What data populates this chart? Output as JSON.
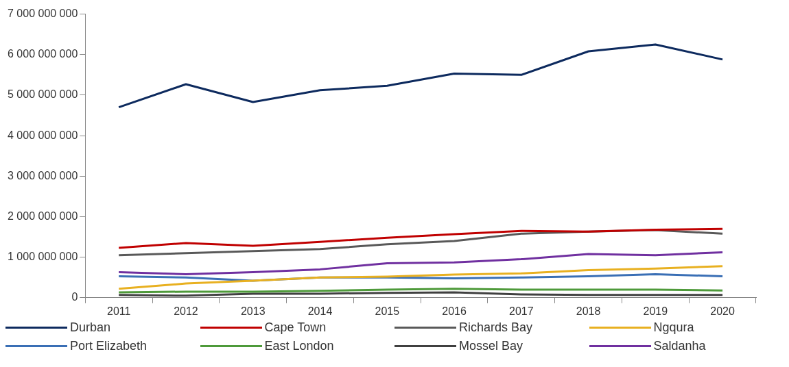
{
  "chart_data": {
    "type": "line",
    "categories": [
      "2011",
      "2012",
      "2013",
      "2014",
      "2015",
      "2016",
      "2017",
      "2018",
      "2019",
      "2020"
    ],
    "series": [
      {
        "name": "Durban",
        "color": "#0d2a5e",
        "values": [
          4700000000,
          5270000000,
          4830000000,
          5120000000,
          5230000000,
          5530000000,
          5500000000,
          6080000000,
          6250000000,
          5880000000
        ]
      },
      {
        "name": "Cape Town",
        "color": "#c00000",
        "values": [
          1230000000,
          1350000000,
          1280000000,
          1380000000,
          1480000000,
          1570000000,
          1650000000,
          1630000000,
          1680000000,
          1700000000
        ]
      },
      {
        "name": "Richards Bay",
        "color": "#595959",
        "values": [
          1050000000,
          1100000000,
          1150000000,
          1200000000,
          1320000000,
          1400000000,
          1580000000,
          1630000000,
          1670000000,
          1580000000
        ]
      },
      {
        "name": "Ngqura",
        "color": "#e8b020",
        "values": [
          220000000,
          350000000,
          420000000,
          500000000,
          520000000,
          570000000,
          600000000,
          680000000,
          720000000,
          780000000
        ]
      },
      {
        "name": "Port Elizabeth",
        "color": "#3a6fb5",
        "values": [
          530000000,
          500000000,
          420000000,
          500000000,
          500000000,
          480000000,
          500000000,
          530000000,
          580000000,
          530000000
        ]
      },
      {
        "name": "East London",
        "color": "#4e9a3a",
        "values": [
          130000000,
          150000000,
          150000000,
          170000000,
          200000000,
          220000000,
          200000000,
          200000000,
          200000000,
          180000000
        ]
      },
      {
        "name": "Mossel Bay",
        "color": "#404040",
        "values": [
          70000000,
          50000000,
          100000000,
          100000000,
          120000000,
          130000000,
          80000000,
          70000000,
          70000000,
          70000000
        ]
      },
      {
        "name": "Saldanha",
        "color": "#7030a0",
        "values": [
          630000000,
          580000000,
          630000000,
          700000000,
          850000000,
          870000000,
          950000000,
          1080000000,
          1050000000,
          1120000000
        ]
      }
    ],
    "ylim": [
      0,
      7000000000
    ],
    "yticks": [
      {
        "value": 0,
        "label": "0"
      },
      {
        "value": 1000000000,
        "label": "1 000 000 000"
      },
      {
        "value": 2000000000,
        "label": "2 000 000 000"
      },
      {
        "value": 3000000000,
        "label": "3 000 000 000"
      },
      {
        "value": 4000000000,
        "label": "4 000 000 000"
      },
      {
        "value": 5000000000,
        "label": "5 000 000 000"
      },
      {
        "value": 6000000000,
        "label": "6 000 000 000"
      },
      {
        "value": 7000000000,
        "label": "7 000 000 000"
      }
    ],
    "grid": false,
    "legend": "bottom",
    "marker": "none",
    "line_style": "solid"
  }
}
